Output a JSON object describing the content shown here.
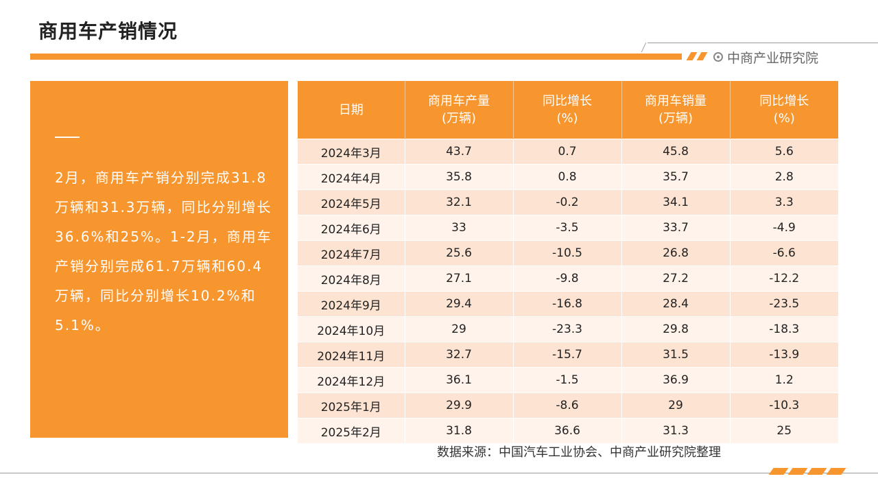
{
  "header": {
    "title": "商用车产销情况",
    "brand": "中商产业研究院"
  },
  "summary": {
    "text": "2月，商用车产销分别完成31.8万辆和31.3万辆，同比分别增长36.6%和25%。1-2月，商用车产销分别完成61.7万辆和60.4万辆，同比分别增长10.2%和5.1%。"
  },
  "table": {
    "headers": [
      {
        "line1": "日期",
        "line2": ""
      },
      {
        "line1": "商用车产量",
        "line2": "(万辆)"
      },
      {
        "line1": "同比增长",
        "line2": "(%)"
      },
      {
        "line1": "商用车销量",
        "line2": "(万辆)"
      },
      {
        "line1": "同比增长",
        "line2": "(%)"
      }
    ],
    "rows": [
      [
        "2024年3月",
        "43.7",
        "0.7",
        "45.8",
        "5.6"
      ],
      [
        "2024年4月",
        "35.8",
        "0.8",
        "35.7",
        "2.8"
      ],
      [
        "2024年5月",
        "32.1",
        "-0.2",
        "34.1",
        "3.3"
      ],
      [
        "2024年6月",
        "33",
        "-3.5",
        "33.7",
        "-4.9"
      ],
      [
        "2024年7月",
        "25.6",
        "-10.5",
        "26.8",
        "-6.6"
      ],
      [
        "2024年8月",
        "27.1",
        "-9.8",
        "27.2",
        "-12.2"
      ],
      [
        "2024年9月",
        "29.4",
        "-16.8",
        "28.4",
        "-23.5"
      ],
      [
        "2024年10月",
        "29",
        "-23.3",
        "29.8",
        "-18.3"
      ],
      [
        "2024年11月",
        "32.7",
        "-15.7",
        "31.5",
        "-13.9"
      ],
      [
        "2024年12月",
        "36.1",
        "-1.5",
        "36.9",
        "1.2"
      ],
      [
        "2025年1月",
        "29.9",
        "-8.6",
        "29",
        "-10.3"
      ],
      [
        "2025年2月",
        "31.8",
        "36.6",
        "31.3",
        "25"
      ]
    ]
  },
  "footer": {
    "source": "数据来源：中国汽车工业协会、中商产业研究院整理"
  },
  "colors": {
    "accent": "#f7952e",
    "row_odd": "#fde3d1",
    "row_even": "#fff3eb"
  },
  "icons": {
    "brand": "brand-circle-icon"
  }
}
